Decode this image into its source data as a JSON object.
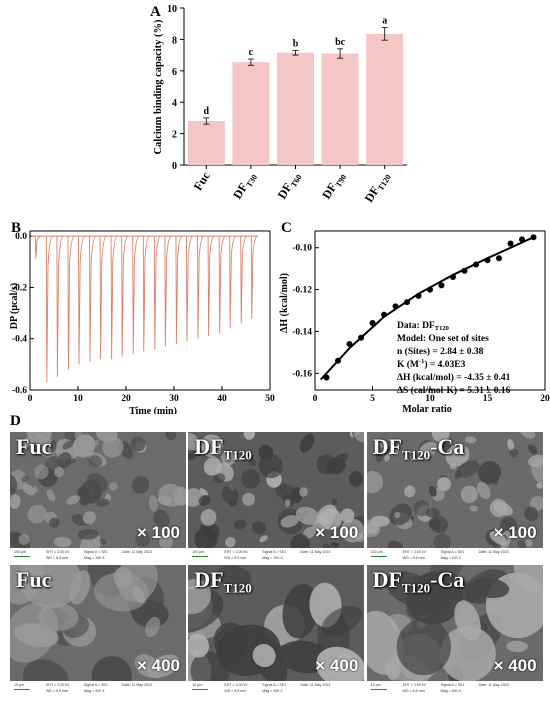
{
  "panels": {
    "a": "A",
    "b": "B",
    "c": "C",
    "d": "D"
  },
  "panel_a": {
    "ylabel": "Calcium binding capacity (%)",
    "yticks": [
      "0",
      "2",
      "4",
      "6",
      "8",
      "10"
    ],
    "categories": [
      {
        "base": "Fuc",
        "sub": ""
      },
      {
        "base": "DF",
        "sub": "T30"
      },
      {
        "base": "DF",
        "sub": "T60"
      },
      {
        "base": "DF",
        "sub": "T90"
      },
      {
        "base": "DF",
        "sub": "T120"
      }
    ],
    "values": [
      2.8,
      6.55,
      7.15,
      7.1,
      8.35
    ],
    "errors": [
      0.2,
      0.2,
      0.15,
      0.3,
      0.4
    ],
    "letters": [
      "d",
      "c",
      "b",
      "bc",
      "a"
    ],
    "bar_color": "#f4c6c6",
    "ylim": [
      0,
      10
    ]
  },
  "panel_b": {
    "ylabel": "DP (μcal/s)",
    "xlabel": "Time (min)",
    "xticks": [
      "0",
      "10",
      "20",
      "30",
      "40",
      "50"
    ],
    "yticks": [
      "0.0",
      "-0.2",
      "-0.4",
      "-0.6"
    ],
    "xlim": [
      0,
      50
    ],
    "ylim": [
      -0.6,
      0.02
    ],
    "color": "#d9826a"
  },
  "panel_c": {
    "ylabel": "ΔH (kcal/mol)",
    "xlabel": "Molar ratio",
    "xticks": [
      "0",
      "5",
      "10",
      "15",
      "20"
    ],
    "yticks": [
      "-0.10",
      "-0.12",
      "-0.14",
      "-0.16"
    ],
    "xlim": [
      0,
      20
    ],
    "ylim": [
      -0.168,
      -0.092
    ],
    "annotation": {
      "data_base": "Data: DF",
      "data_sub": "T120",
      "model": "Model: One set of sites",
      "n": "n (Sites) =  2.84 ± 0.38",
      "k_pre": "K (M",
      "k_sup": "-1",
      "k_post": ") =  4.03E3",
      "dh": "ΔH (kcal/mol) = -4.35 ± 0.41",
      "ds": "ΔS (cal/mol·K) =  5.31 ± 0.16"
    }
  },
  "sem": {
    "labels": [
      {
        "base": "Fuc",
        "sub": "",
        "post": ""
      },
      {
        "base": "DF",
        "sub": "T120",
        "post": ""
      },
      {
        "base": "DF",
        "sub": "T120",
        "post": "-Ca"
      }
    ],
    "mag_top": "× 100",
    "mag_bottom": "× 400",
    "scale_top": "100 μm",
    "scale_bottom": "10 μm",
    "eht": "EHT = 3.00 kV",
    "wd": "WD = 8.5 mm",
    "signal": "Signal A = SE1",
    "mag_x100": "Mag = 100 X",
    "mag_x400": "Mag = 400 X",
    "date": "Date: 11 May 2023"
  },
  "chart_data": [
    {
      "type": "bar",
      "title": "",
      "categories": [
        "Fuc",
        "DFT30",
        "DFT60",
        "DFT90",
        "DFT120"
      ],
      "values": [
        2.8,
        6.55,
        7.15,
        7.1,
        8.35
      ],
      "errors": [
        0.2,
        0.2,
        0.15,
        0.3,
        0.4
      ],
      "annotations": [
        "d",
        "c",
        "b",
        "bc",
        "a"
      ],
      "xlabel": "",
      "ylabel": "Calcium binding capacity (%)",
      "ylim": [
        0,
        10
      ]
    },
    {
      "type": "line",
      "title": "",
      "xlabel": "Time (min)",
      "ylabel": "DP (μcal/s)",
      "xlim": [
        0,
        50
      ],
      "ylim": [
        -0.6,
        0.02
      ],
      "injection_times": [
        1.2,
        3.5,
        5.7,
        8.0,
        10.2,
        12.5,
        14.7,
        17.0,
        19.2,
        21.5,
        23.7,
        26.0,
        28.2,
        30.5,
        32.7,
        35.0,
        37.2,
        39.5,
        41.7,
        44.0,
        46.2
      ],
      "peak_values": [
        -0.09,
        -0.57,
        -0.55,
        -0.52,
        -0.5,
        -0.49,
        -0.48,
        -0.48,
        -0.47,
        -0.46,
        -0.45,
        -0.44,
        -0.43,
        -0.42,
        -0.41,
        -0.4,
        -0.39,
        -0.38,
        -0.36,
        -0.34,
        -0.32
      ]
    },
    {
      "type": "scatter",
      "title": "",
      "xlabel": "Molar ratio",
      "ylabel": "ΔH (kcal/mol)",
      "xlim": [
        0,
        20
      ],
      "ylim": [
        -0.168,
        -0.092
      ],
      "x": [
        1.0,
        2.0,
        3.0,
        4.0,
        5.0,
        6.0,
        7.0,
        8.0,
        9.0,
        10.0,
        11.0,
        12.0,
        13.0,
        14.0,
        15.0,
        16.0,
        17.0,
        18.0,
        19.0
      ],
      "y": [
        -0.162,
        -0.154,
        -0.146,
        -0.143,
        -0.136,
        -0.132,
        -0.128,
        -0.126,
        -0.123,
        -0.12,
        -0.118,
        -0.114,
        -0.111,
        -0.108,
        -0.106,
        -0.105,
        -0.098,
        -0.096,
        -0.095
      ],
      "fit_x": [
        0.5,
        3,
        6,
        9,
        12,
        15,
        19
      ],
      "fit_y": [
        -0.163,
        -0.148,
        -0.133,
        -0.122,
        -0.113,
        -0.105,
        -0.095
      ]
    }
  ]
}
